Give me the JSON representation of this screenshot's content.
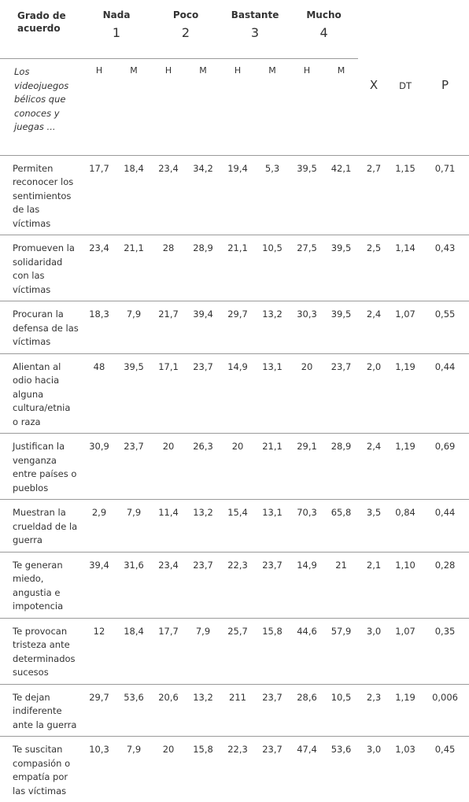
{
  "header": {
    "title": "Grado de acuerdo",
    "levels": [
      {
        "name": "Nada",
        "number": "1"
      },
      {
        "name": "Poco",
        "number": "2"
      },
      {
        "name": "Bastante",
        "number": "3"
      },
      {
        "name": "Mucho",
        "number": "4"
      }
    ],
    "subtitle": "Los videojuegos bélicos que conoces y juegas ...",
    "subheaders": [
      "H",
      "M",
      "H",
      "M",
      "H",
      "M",
      "H",
      "M"
    ],
    "stats": [
      "X",
      "DT",
      "P"
    ]
  },
  "table": {
    "rows": [
      [
        "Permiten reconocer los sentimientos de las víctimas",
        "17,7",
        "18,4",
        "23,4",
        "34,2",
        "19,4",
        "5,3",
        "39,5",
        "42,1",
        "2,7",
        "1,15",
        "0,71"
      ],
      [
        "Promueven la solidaridad con las víctimas",
        "23,4",
        "21,1",
        "28",
        "28,9",
        "21,1",
        "10,5",
        "27,5",
        "39,5",
        "2,5",
        "1,14",
        "0,43"
      ],
      [
        "Procuran la defensa de las víctimas",
        "18,3",
        "7,9",
        "21,7",
        "39,4",
        "29,7",
        "13,2",
        "30,3",
        "39,5",
        "2,4",
        "1,07",
        "0,55"
      ],
      [
        "Alientan al odio hacia alguna cultura/etnia o raza",
        "48",
        "39,5",
        "17,1",
        "23,7",
        "14,9",
        "13,1",
        "20",
        "23,7",
        "2,0",
        "1,19",
        "0,44"
      ],
      [
        "Justifican la venganza entre países o pueblos",
        "30,9",
        "23,7",
        "20",
        "26,3",
        "20",
        "21,1",
        "29,1",
        "28,9",
        "2,4",
        "1,19",
        "0,69"
      ],
      [
        "Muestran la crueldad de la guerra",
        "2,9",
        "7,9",
        "11,4",
        "13,2",
        "15,4",
        "13,1",
        "70,3",
        "65,8",
        "3,5",
        "0,84",
        "0,44"
      ],
      [
        "Te generan miedo, angustia e impotencia",
        "39,4",
        "31,6",
        "23,4",
        "23,7",
        "22,3",
        "23,7",
        "14,9",
        "21",
        "2,1",
        "1,10",
        "0,28"
      ],
      [
        "Te provocan tristeza ante determinados sucesos",
        "12",
        "18,4",
        "17,7",
        "7,9",
        "25,7",
        "15,8",
        "44,6",
        "57,9",
        "3,0",
        "1,07",
        "0,35"
      ],
      [
        "Te dejan indiferente ante la guerra",
        "29,7",
        "53,6",
        "20,6",
        "13,2",
        "211",
        "23,7",
        "28,6",
        "10,5",
        "2,3",
        "1,19",
        "0,006"
      ],
      [
        "Te suscitan compasión o empatía por las víctimas",
        "10,3",
        "7,9",
        "20",
        "15,8",
        "22,3",
        "23,7",
        "47,4",
        "53,6",
        "3,0",
        "1,03",
        "0,45"
      ]
    ]
  }
}
